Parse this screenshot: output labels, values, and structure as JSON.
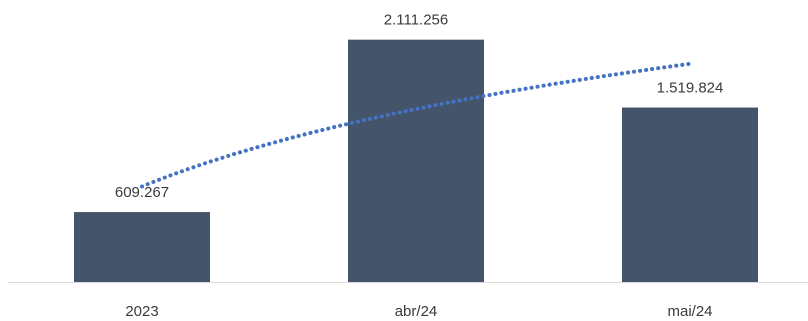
{
  "chart_data": {
    "type": "bar",
    "categories": [
      "2023",
      "abr/24",
      "mai/24"
    ],
    "values": [
      609267,
      2111256,
      1519824
    ],
    "data_labels": [
      "609.267",
      "2.111.256",
      "1.519.824"
    ],
    "ylim": [
      0,
      2300000
    ],
    "grid": false,
    "legend": "none",
    "trendline": {
      "style": "dotted",
      "kind": "logarithmic"
    },
    "colors": {
      "bar": "#44546a",
      "trendline": "#4472c4",
      "axis": "#d9d9d9",
      "text": "#3a3a3a"
    }
  }
}
